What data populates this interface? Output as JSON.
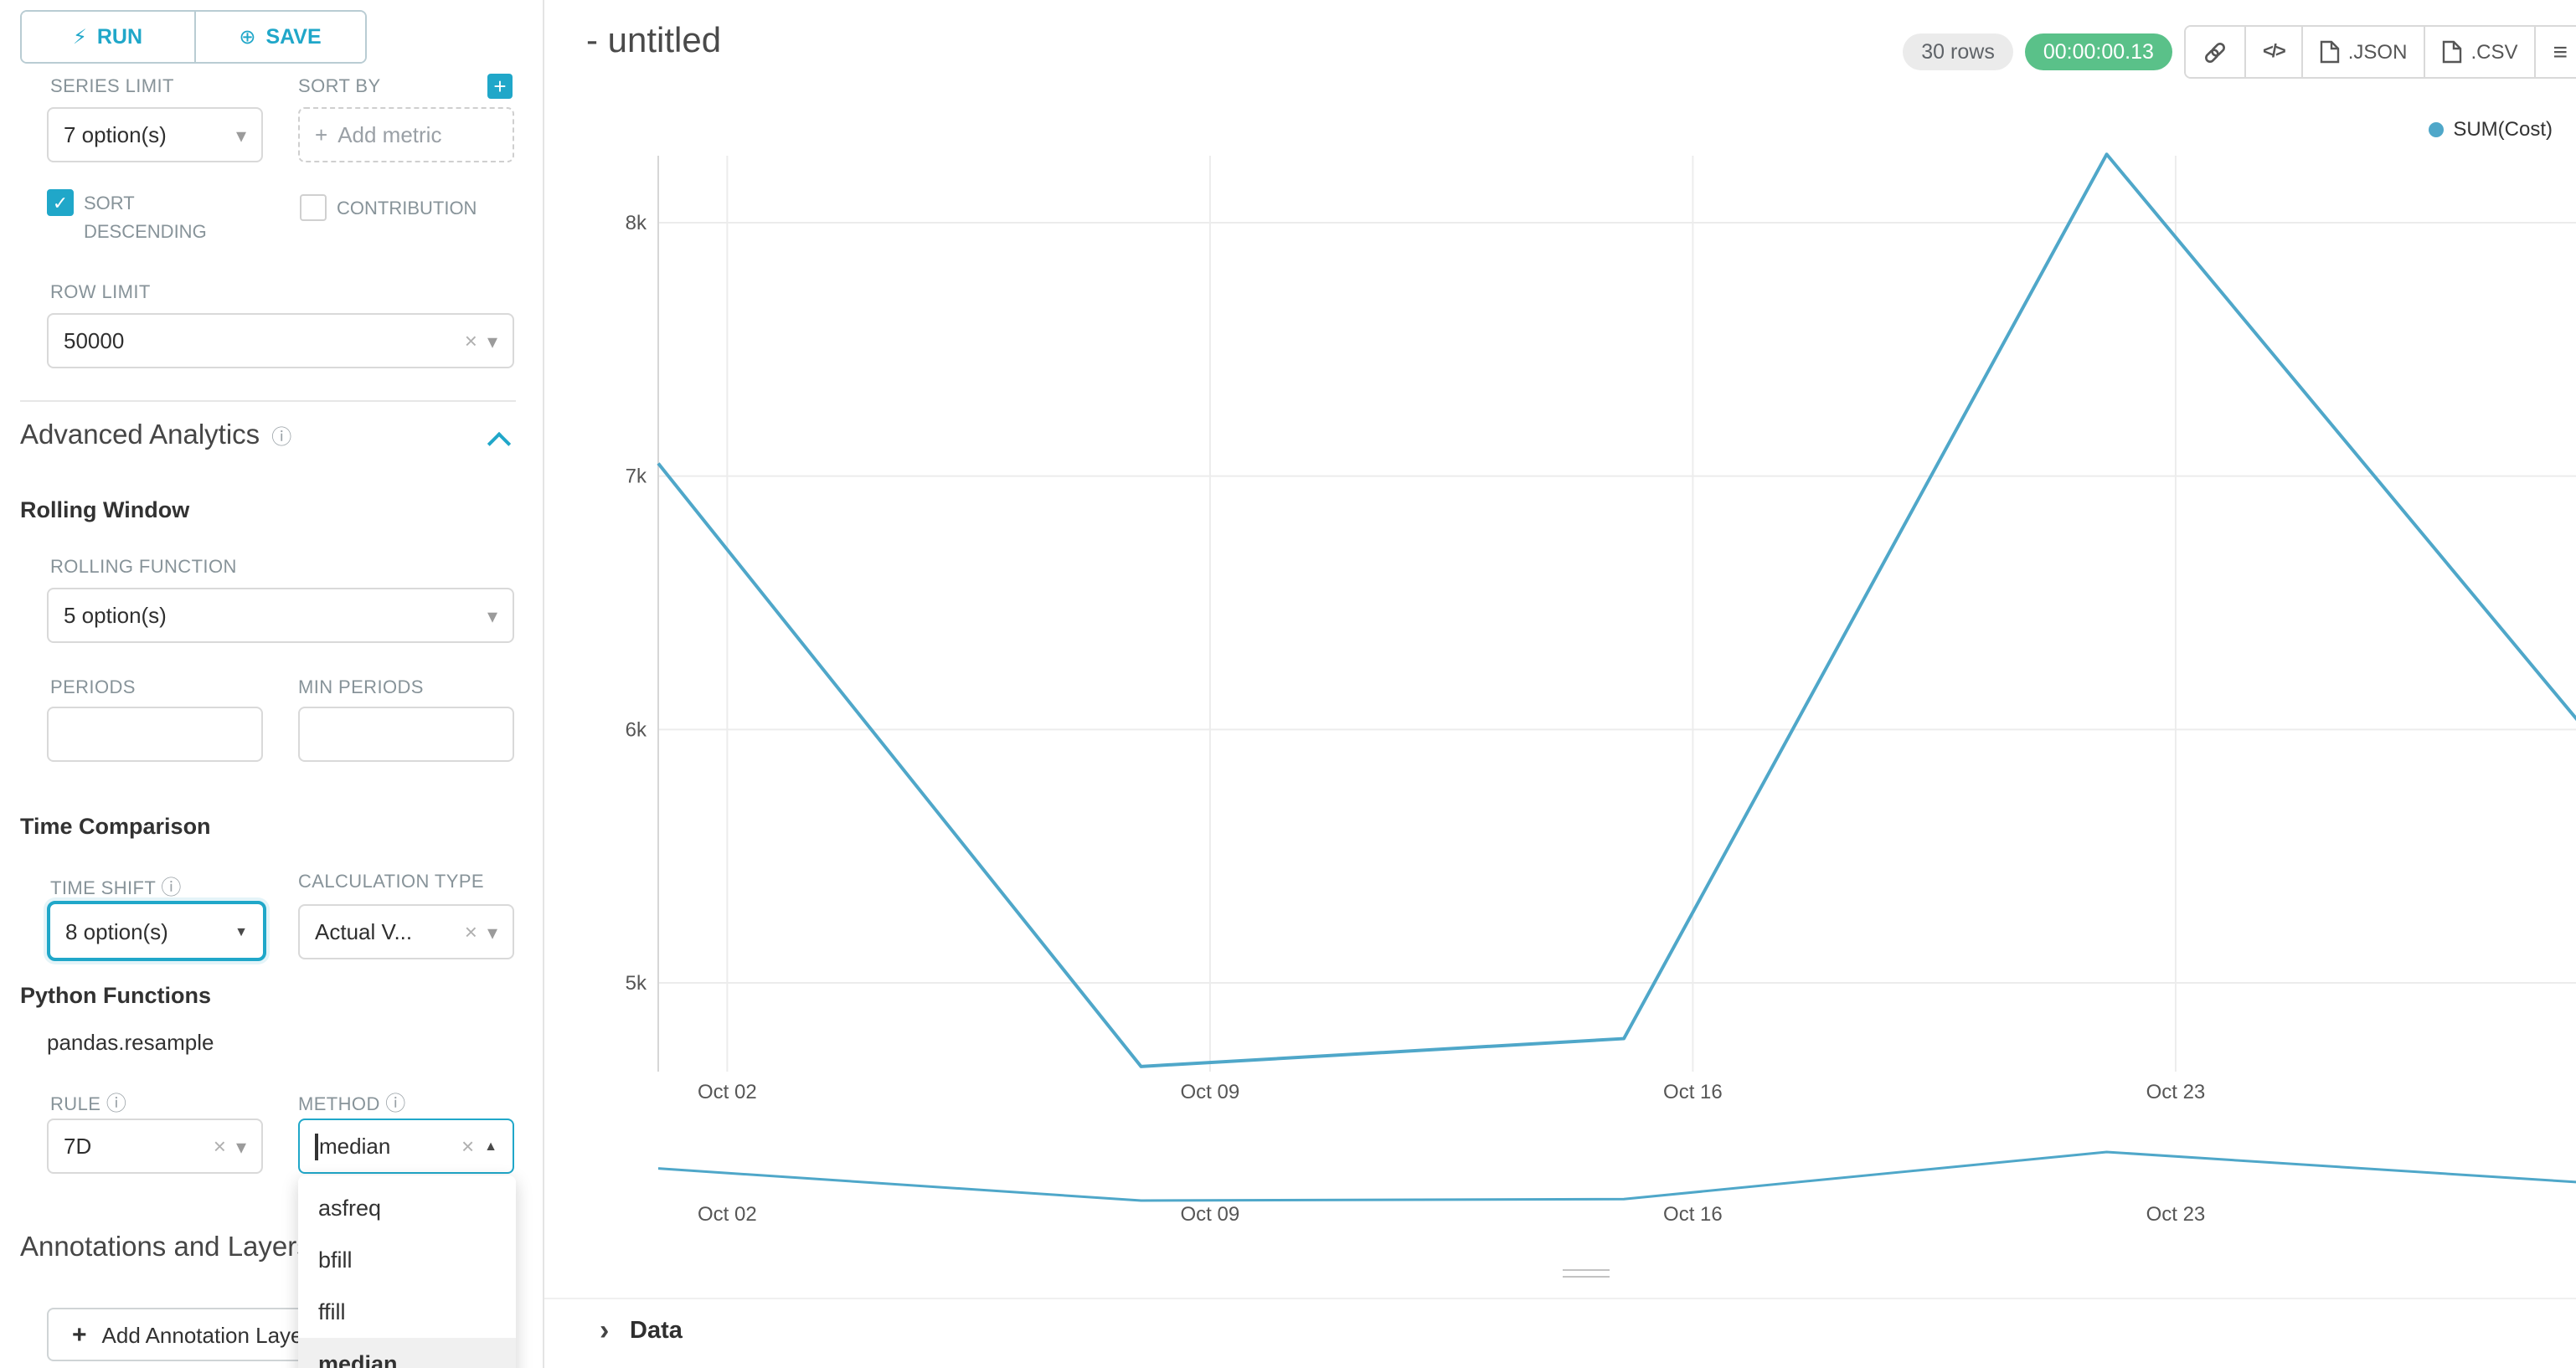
{
  "colors": {
    "accent": "#20a7c9",
    "success": "#5ac189",
    "line": "#4fa7c9"
  },
  "icons": {
    "run": "⚡",
    "save": "⊕",
    "add": "+",
    "info": "ⓘ",
    "check": "✓",
    "clear": "×",
    "chevron_down": "▾",
    "caret_down": "▼",
    "caret_up": "▲",
    "menu": "≡",
    "code": "</>",
    "data_chevron": "›"
  },
  "sidebar": {
    "run_label": "RUN",
    "save_label": "SAVE",
    "series_limit": {
      "label": "SERIES LIMIT",
      "value": "7 option(s)"
    },
    "sort_by": {
      "label": "SORT BY",
      "placeholder": "Add metric"
    },
    "sort_descending": {
      "label": "SORT DESCENDING",
      "checked": true
    },
    "contribution": {
      "label": "CONTRIBUTION",
      "checked": false
    },
    "row_limit": {
      "label": "ROW LIMIT",
      "value": "50000"
    },
    "advanced_analytics_title": "Advanced Analytics",
    "rolling_window": {
      "title": "Rolling Window",
      "rolling_function": {
        "label": "ROLLING FUNCTION",
        "value": "5 option(s)"
      },
      "periods_label": "PERIODS",
      "min_periods_label": "MIN PERIODS"
    },
    "time_comparison": {
      "title": "Time Comparison",
      "time_shift": {
        "label": "TIME SHIFT",
        "value": "8 option(s)"
      },
      "calculation_type": {
        "label": "CALCULATION TYPE",
        "value": "Actual V..."
      }
    },
    "python_functions": {
      "title": "Python Functions",
      "subtitle": "pandas.resample",
      "rule": {
        "label": "RULE",
        "value": "7D"
      },
      "method": {
        "label": "METHOD",
        "value": "median"
      }
    },
    "method_dropdown": {
      "options": [
        "asfreq",
        "bfill",
        "ffill",
        "median"
      ],
      "selected": "median"
    },
    "annotations_title": "Annotations and Layers",
    "add_annotation_label": "Add Annotation Layer"
  },
  "header": {
    "title": "- untitled",
    "rows_badge": "30 rows",
    "timer": "00:00:00.13",
    "json_label": ".JSON",
    "csv_label": ".CSV"
  },
  "legend_label": "SUM(Cost)",
  "chart_data": {
    "type": "line",
    "title": "- untitled",
    "legend": [
      "SUM(Cost)"
    ],
    "series": [
      {
        "name": "SUM(Cost)",
        "x_days": [
          0,
          7,
          14,
          21,
          28
        ],
        "x_dates": [
          "Oct 01",
          "Oct 08",
          "Oct 15",
          "Oct 22",
          "Oct 29"
        ],
        "values": [
          7050,
          4670,
          4780,
          8270,
          5980
        ]
      }
    ],
    "x_tick_days": [
      1,
      8,
      15,
      22
    ],
    "x_tick_labels": [
      "Oct 02",
      "Oct 09",
      "Oct 16",
      "Oct 23"
    ],
    "y_tick_values": [
      5000,
      6000,
      7000,
      8000
    ],
    "y_tick_labels": [
      "5k",
      "6k",
      "7k",
      "8k"
    ],
    "ylim": [
      4600,
      8450
    ],
    "grid": true,
    "legend_position": "top-right",
    "line_color": "#4fa7c9",
    "has_mini_preview": true
  },
  "data_panel": {
    "title": "Data"
  }
}
